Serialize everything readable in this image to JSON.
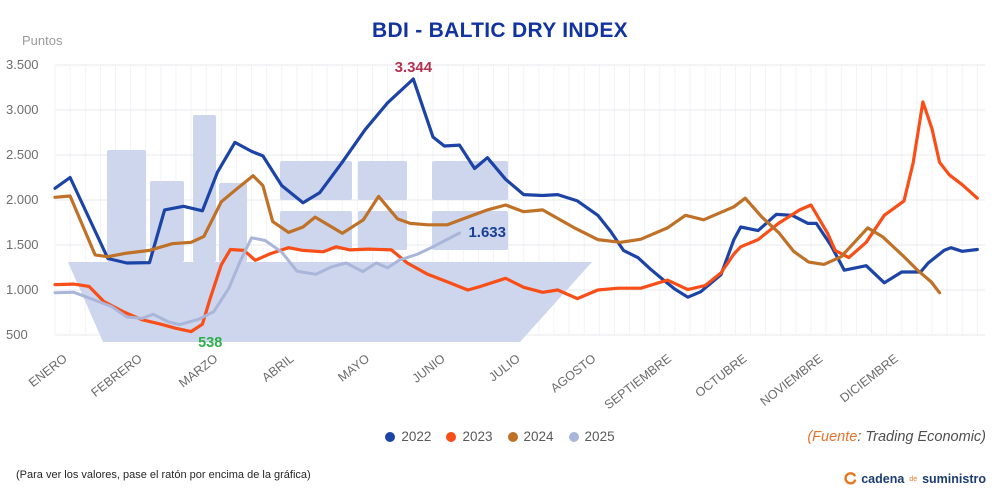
{
  "title": "BDI - BALTIC DRY INDEX",
  "y_axis_unit": "Puntos",
  "footer_note": "(Para ver los valores, pase el ratón por encima de la gráfica)",
  "source": {
    "prefix": "(Fuente",
    "rest": ": Trading Economic)"
  },
  "logo": {
    "icon": "circular-arrow-icon",
    "text1": "cadena",
    "text2": "de",
    "text3": "suministro"
  },
  "colors": {
    "title": "#1233a0",
    "series_2022": "#1c43a6",
    "series_2023": "#f94e17",
    "series_2024": "#bf7127",
    "series_2025": "#a9b6da",
    "watermark": "#cdd6ed",
    "annotation_red": "#b23351",
    "annotation_green": "#2fb04b",
    "annotation_navy": "#193f92",
    "source_orange": "#e8722e",
    "logo_navy": "#1d3c70",
    "logo_orange": "#e87722"
  },
  "chart_data": {
    "type": "line",
    "title": "BDI - BALTIC DRY INDEX",
    "xlabel": "",
    "ylabel": "Puntos",
    "ylim": [
      500,
      3500
    ],
    "xlim_months": [
      0,
      12.31
    ],
    "grid": true,
    "legend_position": "bottom-center",
    "x_tick_labels": [
      "ENERO",
      "FEBRERO",
      "MARZO",
      "ABRIL",
      "MAYO",
      "JUNIO",
      "JULIO",
      "AGOSTO",
      "SEPTIEMBRE",
      "OCTUBRE",
      "NOVIEMBRE",
      "DICIEMBRE"
    ],
    "y_ticks": [
      {
        "label": "3.500",
        "value": 3500
      },
      {
        "label": "3.000",
        "value": 3000
      },
      {
        "label": "2.500",
        "value": 2500
      },
      {
        "label": "2.000",
        "value": 2000
      },
      {
        "label": "1.500",
        "value": 1500
      },
      {
        "label": "1.000",
        "value": 1000
      },
      {
        "label": "500",
        "value": 500
      }
    ],
    "x_unit_note": "x coordinates below are fractional months, 0 = ENERO tick, weekly resolution",
    "series": [
      {
        "name": "2022",
        "color": "#1c43a6",
        "width": 3.2,
        "points": [
          [
            0,
            2130
          ],
          [
            0.2,
            2250
          ],
          [
            0.45,
            1800
          ],
          [
            0.7,
            1350
          ],
          [
            0.95,
            1300
          ],
          [
            1.25,
            1305
          ],
          [
            1.45,
            1890
          ],
          [
            1.7,
            1930
          ],
          [
            1.95,
            1880
          ],
          [
            2.15,
            2310
          ],
          [
            2.38,
            2640
          ],
          [
            2.6,
            2540
          ],
          [
            2.75,
            2490
          ],
          [
            3.0,
            2160
          ],
          [
            3.28,
            1970
          ],
          [
            3.5,
            2080
          ],
          [
            3.8,
            2420
          ],
          [
            4.1,
            2780
          ],
          [
            4.4,
            3080
          ],
          [
            4.74,
            3344
          ],
          [
            5.0,
            2700
          ],
          [
            5.15,
            2600
          ],
          [
            5.35,
            2610
          ],
          [
            5.55,
            2350
          ],
          [
            5.72,
            2470
          ],
          [
            5.96,
            2230
          ],
          [
            6.2,
            2060
          ],
          [
            6.45,
            2050
          ],
          [
            6.65,
            2060
          ],
          [
            6.91,
            1990
          ],
          [
            7.18,
            1830
          ],
          [
            7.35,
            1650
          ],
          [
            7.52,
            1440
          ],
          [
            7.71,
            1360
          ],
          [
            7.88,
            1230
          ],
          [
            8.05,
            1110
          ],
          [
            8.2,
            1010
          ],
          [
            8.37,
            920
          ],
          [
            8.54,
            980
          ],
          [
            8.81,
            1170
          ],
          [
            8.98,
            1560
          ],
          [
            9.07,
            1700
          ],
          [
            9.3,
            1660
          ],
          [
            9.54,
            1840
          ],
          [
            9.75,
            1830
          ],
          [
            9.96,
            1740
          ],
          [
            10.07,
            1740
          ],
          [
            10.26,
            1500
          ],
          [
            10.44,
            1220
          ],
          [
            10.73,
            1270
          ],
          [
            10.97,
            1080
          ],
          [
            11.2,
            1200
          ],
          [
            11.45,
            1200
          ],
          [
            11.55,
            1300
          ],
          [
            11.76,
            1440
          ],
          [
            11.85,
            1470
          ],
          [
            12.0,
            1430
          ],
          [
            12.2,
            1450
          ]
        ]
      },
      {
        "name": "2023",
        "color": "#f94e17",
        "width": 3.2,
        "points": [
          [
            0,
            1060
          ],
          [
            0.25,
            1065
          ],
          [
            0.45,
            1040
          ],
          [
            0.65,
            870
          ],
          [
            0.9,
            760
          ],
          [
            1.15,
            670
          ],
          [
            1.4,
            620
          ],
          [
            1.6,
            575
          ],
          [
            1.8,
            538
          ],
          [
            1.95,
            620
          ],
          [
            2.05,
            900
          ],
          [
            2.2,
            1280
          ],
          [
            2.32,
            1450
          ],
          [
            2.5,
            1440
          ],
          [
            2.65,
            1330
          ],
          [
            2.85,
            1405
          ],
          [
            3.09,
            1470
          ],
          [
            3.28,
            1440
          ],
          [
            3.55,
            1425
          ],
          [
            3.72,
            1480
          ],
          [
            3.9,
            1445
          ],
          [
            4.15,
            1455
          ],
          [
            4.45,
            1445
          ],
          [
            4.66,
            1300
          ],
          [
            4.93,
            1175
          ],
          [
            5.19,
            1090
          ],
          [
            5.46,
            1000
          ],
          [
            5.63,
            1040
          ],
          [
            5.96,
            1130
          ],
          [
            6.2,
            1030
          ],
          [
            6.45,
            975
          ],
          [
            6.65,
            1000
          ],
          [
            6.91,
            905
          ],
          [
            7.18,
            1000
          ],
          [
            7.45,
            1020
          ],
          [
            7.75,
            1020
          ],
          [
            8.1,
            1110
          ],
          [
            8.37,
            1005
          ],
          [
            8.6,
            1050
          ],
          [
            8.81,
            1190
          ],
          [
            8.98,
            1400
          ],
          [
            9.07,
            1480
          ],
          [
            9.3,
            1560
          ],
          [
            9.57,
            1740
          ],
          [
            9.85,
            1890
          ],
          [
            10.0,
            1945
          ],
          [
            10.22,
            1630
          ],
          [
            10.32,
            1440
          ],
          [
            10.5,
            1360
          ],
          [
            10.73,
            1530
          ],
          [
            10.97,
            1830
          ],
          [
            11.23,
            1990
          ],
          [
            11.35,
            2410
          ],
          [
            11.48,
            3090
          ],
          [
            11.6,
            2790
          ],
          [
            11.7,
            2420
          ],
          [
            11.83,
            2280
          ],
          [
            12.0,
            2170
          ],
          [
            12.2,
            2020
          ]
        ]
      },
      {
        "name": "2024",
        "color": "#bf7127",
        "width": 3.2,
        "points": [
          [
            0,
            2030
          ],
          [
            0.2,
            2045
          ],
          [
            0.53,
            1390
          ],
          [
            0.7,
            1370
          ],
          [
            0.95,
            1410
          ],
          [
            1.25,
            1440
          ],
          [
            1.55,
            1515
          ],
          [
            1.8,
            1530
          ],
          [
            1.97,
            1595
          ],
          [
            2.2,
            1980
          ],
          [
            2.4,
            2120
          ],
          [
            2.62,
            2270
          ],
          [
            2.75,
            2160
          ],
          [
            2.88,
            1760
          ],
          [
            3.09,
            1640
          ],
          [
            3.28,
            1700
          ],
          [
            3.44,
            1810
          ],
          [
            3.8,
            1630
          ],
          [
            4.08,
            1780
          ],
          [
            4.28,
            2040
          ],
          [
            4.53,
            1790
          ],
          [
            4.7,
            1740
          ],
          [
            4.93,
            1725
          ],
          [
            5.19,
            1725
          ],
          [
            5.46,
            1810
          ],
          [
            5.72,
            1890
          ],
          [
            5.96,
            1945
          ],
          [
            6.2,
            1870
          ],
          [
            6.45,
            1890
          ],
          [
            6.86,
            1695
          ],
          [
            7.18,
            1560
          ],
          [
            7.48,
            1530
          ],
          [
            7.75,
            1565
          ],
          [
            8.1,
            1690
          ],
          [
            8.34,
            1830
          ],
          [
            8.58,
            1780
          ],
          [
            8.98,
            1925
          ],
          [
            9.13,
            2020
          ],
          [
            9.35,
            1810
          ],
          [
            9.57,
            1640
          ],
          [
            9.77,
            1430
          ],
          [
            9.97,
            1310
          ],
          [
            10.17,
            1285
          ],
          [
            10.4,
            1370
          ],
          [
            10.75,
            1690
          ],
          [
            10.95,
            1590
          ],
          [
            11.23,
            1370
          ],
          [
            11.41,
            1220
          ],
          [
            11.59,
            1090
          ],
          [
            11.7,
            970
          ]
        ]
      },
      {
        "name": "2025",
        "color": "#a9b6da",
        "width": 3,
        "points": [
          [
            0,
            970
          ],
          [
            0.25,
            975
          ],
          [
            0.5,
            895
          ],
          [
            0.75,
            815
          ],
          [
            0.95,
            700
          ],
          [
            1.15,
            685
          ],
          [
            1.3,
            730
          ],
          [
            1.5,
            645
          ],
          [
            1.65,
            615
          ],
          [
            1.9,
            675
          ],
          [
            2.1,
            760
          ],
          [
            2.3,
            1020
          ],
          [
            2.45,
            1320
          ],
          [
            2.6,
            1580
          ],
          [
            2.78,
            1550
          ],
          [
            3.0,
            1420
          ],
          [
            3.2,
            1210
          ],
          [
            3.45,
            1175
          ],
          [
            3.65,
            1255
          ],
          [
            3.85,
            1300
          ],
          [
            4.07,
            1205
          ],
          [
            4.25,
            1300
          ],
          [
            4.4,
            1245
          ],
          [
            4.55,
            1330
          ],
          [
            4.8,
            1400
          ],
          [
            5.0,
            1480
          ],
          [
            5.35,
            1633
          ]
        ]
      }
    ],
    "annotations": [
      {
        "text": "3.344",
        "color": "#b23351",
        "month": 4.74,
        "value": 3344,
        "placement": "above-center"
      },
      {
        "text": "538",
        "color": "#2fb04b",
        "month": 1.8,
        "value": 538,
        "placement": "below-right"
      },
      {
        "text": "1.633",
        "color": "#193f92",
        "month": 5.35,
        "value": 1633,
        "placement": "right"
      }
    ],
    "legend": [
      {
        "label": "2022",
        "color": "#1c43a6"
      },
      {
        "label": "2023",
        "color": "#f94e17"
      },
      {
        "label": "2024",
        "color": "#bf7127"
      },
      {
        "label": "2025",
        "color": "#a9b6da"
      }
    ]
  }
}
